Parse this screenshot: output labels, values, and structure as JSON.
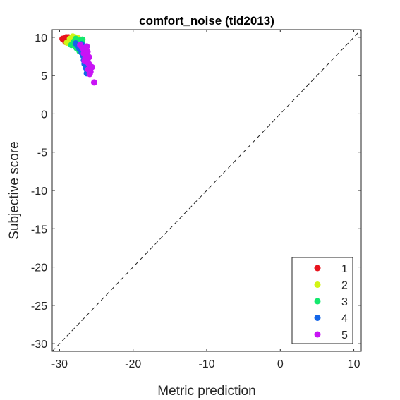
{
  "chart_data": {
    "type": "scatter",
    "title": "comfort_noise (tid2013)",
    "xlabel": "Metric prediction",
    "ylabel": "Subjective score",
    "xlim": [
      -31,
      11
    ],
    "ylim": [
      -31,
      11
    ],
    "xticks": [
      -30,
      -20,
      -10,
      0,
      10
    ],
    "yticks": [
      -30,
      -25,
      -20,
      -15,
      -10,
      -5,
      0,
      5,
      10
    ],
    "reference_line": "y = x",
    "reference_line_style": "dashed",
    "legend_position": "bottom-right",
    "series": [
      {
        "name": "1",
        "color": "#e8141e",
        "points": [
          [
            -29.6,
            9.8
          ],
          [
            -29.3,
            9.6
          ],
          [
            -29.1,
            10.0
          ],
          [
            -29.2,
            9.4
          ],
          [
            -28.9,
            9.7
          ],
          [
            -28.8,
            10.0
          ],
          [
            -28.6,
            9.5
          ],
          [
            -28.7,
            9.9
          ],
          [
            -28.4,
            9.6
          ],
          [
            -28.2,
            9.3
          ]
        ]
      },
      {
        "name": "2",
        "color": "#d2f514",
        "points": [
          [
            -29.0,
            9.3
          ],
          [
            -28.6,
            9.8
          ],
          [
            -28.4,
            9.9
          ],
          [
            -28.2,
            10.1
          ],
          [
            -28.0,
            9.6
          ],
          [
            -27.9,
            10.0
          ],
          [
            -27.7,
            9.4
          ],
          [
            -27.6,
            9.8
          ],
          [
            -28.3,
            9.2
          ],
          [
            -27.5,
            9.9
          ]
        ]
      },
      {
        "name": "3",
        "color": "#14e86e",
        "points": [
          [
            -28.4,
            9.0
          ],
          [
            -28.1,
            9.4
          ],
          [
            -27.8,
            9.8
          ],
          [
            -27.6,
            9.5
          ],
          [
            -27.4,
            9.1
          ],
          [
            -27.2,
            9.6
          ],
          [
            -27.0,
            9.4
          ],
          [
            -26.9,
            9.7
          ],
          [
            -27.7,
            8.6
          ],
          [
            -27.3,
            8.2
          ]
        ]
      },
      {
        "name": "4",
        "color": "#1466e8",
        "points": [
          [
            -27.8,
            9.2
          ],
          [
            -27.5,
            8.9
          ],
          [
            -27.3,
            8.5
          ],
          [
            -27.1,
            8.8
          ],
          [
            -27.0,
            8.0
          ],
          [
            -26.8,
            7.6
          ],
          [
            -26.7,
            7.0
          ],
          [
            -26.6,
            6.5
          ],
          [
            -26.4,
            6.0
          ],
          [
            -26.3,
            5.3
          ],
          [
            -27.0,
            9.1
          ],
          [
            -26.6,
            7.4
          ]
        ]
      },
      {
        "name": "5",
        "color": "#c814f5",
        "points": [
          [
            -27.2,
            9.0
          ],
          [
            -26.9,
            8.6
          ],
          [
            -26.6,
            8.3
          ],
          [
            -26.3,
            8.8
          ],
          [
            -26.7,
            7.9
          ],
          [
            -26.4,
            7.7
          ],
          [
            -26.2,
            8.1
          ],
          [
            -26.5,
            7.3
          ],
          [
            -26.2,
            7.1
          ],
          [
            -26.0,
            7.4
          ],
          [
            -26.3,
            6.8
          ],
          [
            -26.0,
            6.5
          ],
          [
            -25.8,
            6.2
          ],
          [
            -26.1,
            5.8
          ],
          [
            -25.8,
            5.5
          ],
          [
            -25.6,
            6.1
          ],
          [
            -25.9,
            5.2
          ],
          [
            -26.6,
            6.9
          ],
          [
            -25.3,
            4.1
          ]
        ]
      }
    ]
  }
}
